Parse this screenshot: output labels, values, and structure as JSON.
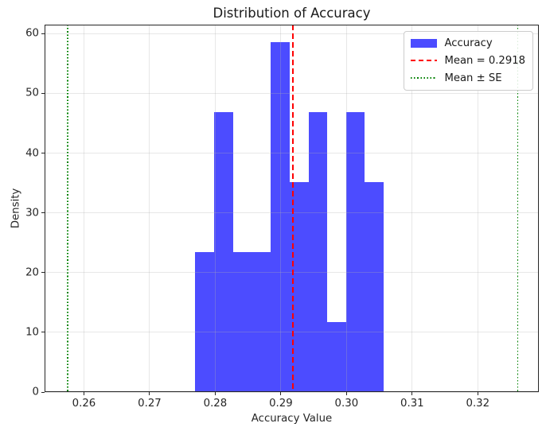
{
  "chart_data": {
    "type": "bar",
    "variant": "histogram",
    "title": "Distribution of Accuracy",
    "xlabel": "Accuracy Value",
    "ylabel": "Density",
    "xlim": [
      0.254,
      0.3293
    ],
    "ylim": [
      0,
      61.5
    ],
    "xticks": [
      0.26,
      0.27,
      0.28,
      0.29,
      0.3,
      0.31,
      0.32
    ],
    "yticks": [
      0,
      10,
      20,
      30,
      40,
      50,
      60
    ],
    "grid": true,
    "grid_color": "#b0b0b0",
    "grid_alpha": 0.3,
    "bin_edges": [
      0.2769,
      0.2798,
      0.2827,
      0.2856,
      0.2884,
      0.2913,
      0.2942,
      0.2971,
      0.2999,
      0.3028,
      0.3057
    ],
    "densities": [
      23.4,
      46.9,
      23.4,
      23.4,
      58.6,
      35.2,
      46.9,
      11.7,
      46.9,
      35.2
    ],
    "counts": [
      2,
      4,
      2,
      2,
      5,
      3,
      4,
      1,
      4,
      3
    ],
    "bar_color": "#0000ff",
    "bar_alpha": 0.7,
    "mean": 0.2918,
    "mean_line": {
      "value": 0.2918,
      "color": "#ff0000",
      "style": "dashed"
    },
    "se_lines": {
      "values": [
        0.2575,
        0.3261
      ],
      "color": "#008000",
      "style": "dotted"
    },
    "legend": {
      "position": "upper right",
      "items": [
        {
          "label": "Accuracy",
          "type": "patch",
          "color": "#0000ff"
        },
        {
          "label": "Mean = 0.2918",
          "type": "line-dashed",
          "color": "#ff0000"
        },
        {
          "label": "Mean ± SE",
          "type": "line-dotted",
          "color": "#008000"
        }
      ]
    }
  }
}
